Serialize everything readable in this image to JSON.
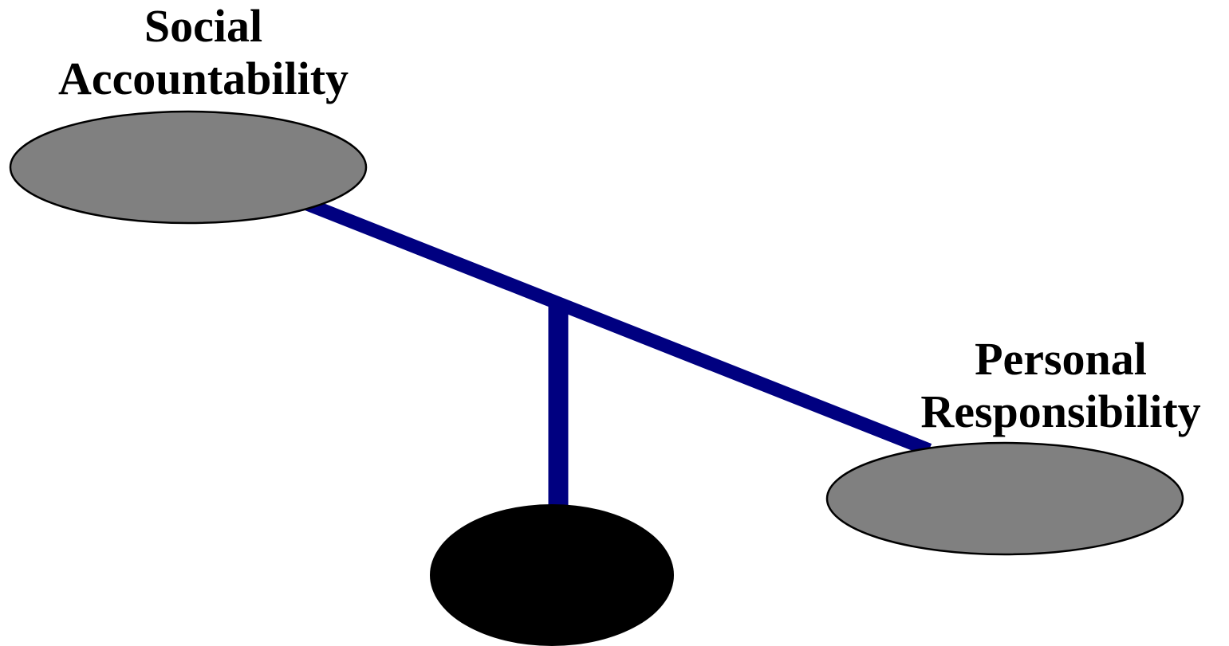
{
  "labels": {
    "left_line1": "Social",
    "left_line2": "Accountability",
    "right_line1": "Personal",
    "right_line2": "Responsibility"
  },
  "colors": {
    "beam": "#000080",
    "pan_fill": "#808080",
    "pan_stroke": "#000000",
    "base": "#000000",
    "background": "#ffffff"
  }
}
